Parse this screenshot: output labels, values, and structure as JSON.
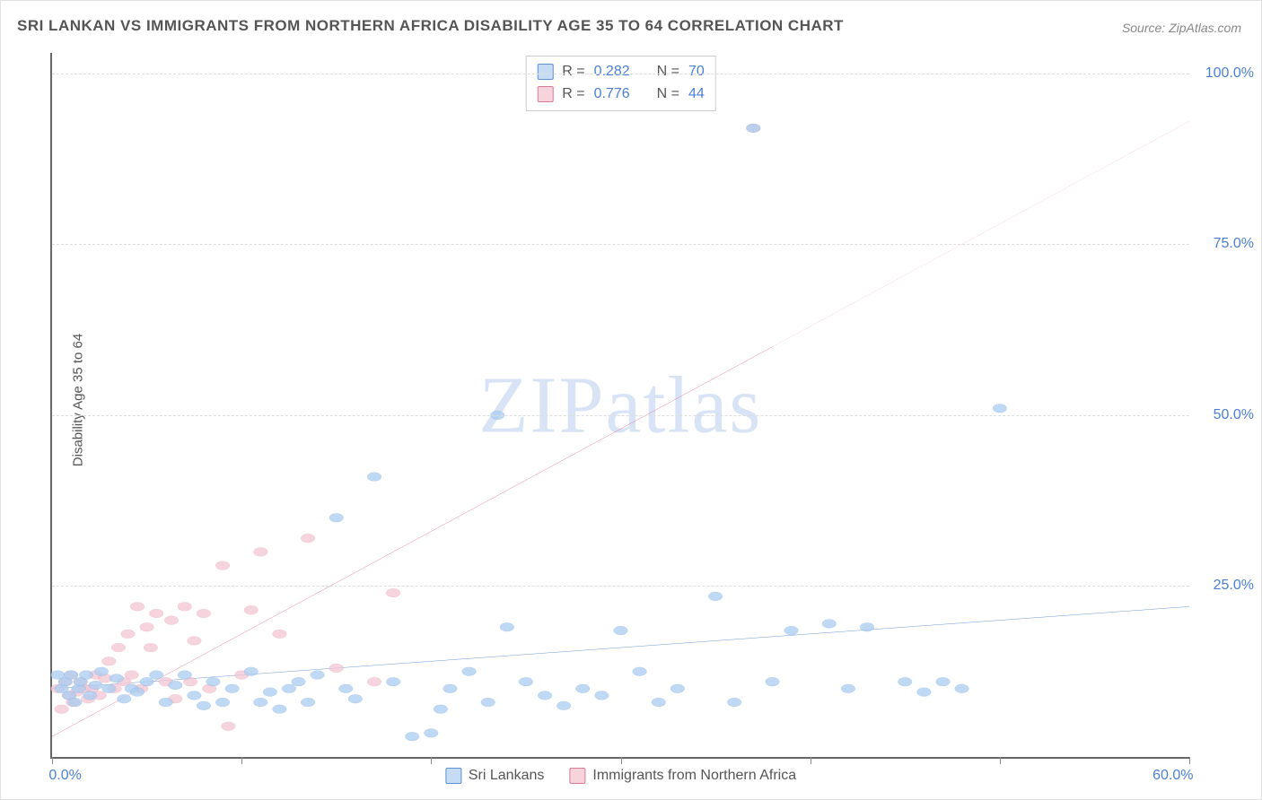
{
  "title": "SRI LANKAN VS IMMIGRANTS FROM NORTHERN AFRICA DISABILITY AGE 35 TO 64 CORRELATION CHART",
  "source": "Source: ZipAtlas.com",
  "ylabel": "Disability Age 35 to 64",
  "watermark_a": "ZIP",
  "watermark_b": "atlas",
  "chart": {
    "type": "scatter",
    "xlim": [
      0,
      60
    ],
    "ylim": [
      0,
      103
    ],
    "yticks": [
      25,
      50,
      75,
      100
    ],
    "ytick_labels": [
      "25.0%",
      "50.0%",
      "75.0%",
      "100.0%"
    ],
    "xticks": [
      0,
      10,
      20,
      30,
      40,
      50,
      60
    ],
    "xtick_labels": [
      "0.0%",
      "",
      "",
      "",
      "",
      "",
      "60.0%"
    ],
    "grid_color": "#dddddd",
    "axis_color": "#666666",
    "label_color": "#4a7fd8",
    "background": "#ffffff",
    "point_radius": 7,
    "point_opacity": 0.75,
    "line_width": 2.8
  },
  "series": {
    "blue": {
      "label": "Sri Lankans",
      "R": "0.282",
      "N": "70",
      "fill": "#a9ccf0",
      "stroke": "#4f86c9",
      "line_color": "#2f6fc4",
      "trend": {
        "x1": 0,
        "y1": 10,
        "x2": 60,
        "y2": 22,
        "dash_from_x": 60
      },
      "points": [
        [
          0.3,
          12
        ],
        [
          0.5,
          10
        ],
        [
          0.7,
          11
        ],
        [
          0.9,
          9
        ],
        [
          1.0,
          12
        ],
        [
          1.2,
          8
        ],
        [
          1.4,
          10
        ],
        [
          1.5,
          11
        ],
        [
          1.8,
          12
        ],
        [
          2.0,
          9
        ],
        [
          2.3,
          10.5
        ],
        [
          2.6,
          12.5
        ],
        [
          3.0,
          10
        ],
        [
          3.4,
          11.5
        ],
        [
          3.8,
          8.5
        ],
        [
          4.2,
          10
        ],
        [
          4.5,
          9.5
        ],
        [
          5.0,
          11
        ],
        [
          5.5,
          12
        ],
        [
          6.0,
          8
        ],
        [
          6.5,
          10.5
        ],
        [
          7.0,
          12
        ],
        [
          7.5,
          9
        ],
        [
          8.0,
          7.5
        ],
        [
          8.5,
          11
        ],
        [
          9.0,
          8
        ],
        [
          9.5,
          10
        ],
        [
          10.5,
          12.5
        ],
        [
          11.0,
          8
        ],
        [
          11.5,
          9.5
        ],
        [
          12.0,
          7
        ],
        [
          12.5,
          10
        ],
        [
          13.0,
          11
        ],
        [
          13.5,
          8
        ],
        [
          14.0,
          12
        ],
        [
          15.0,
          35
        ],
        [
          15.5,
          10
        ],
        [
          16.0,
          8.5
        ],
        [
          17.0,
          41
        ],
        [
          18.0,
          11
        ],
        [
          19.0,
          3
        ],
        [
          20.0,
          3.5
        ],
        [
          20.5,
          7
        ],
        [
          21.0,
          10
        ],
        [
          22.0,
          12.5
        ],
        [
          23.0,
          8
        ],
        [
          23.5,
          50
        ],
        [
          24.0,
          19
        ],
        [
          25.0,
          11
        ],
        [
          26.0,
          9
        ],
        [
          27.0,
          7.5
        ],
        [
          28.0,
          10
        ],
        [
          29.0,
          9
        ],
        [
          30.0,
          18.5
        ],
        [
          31.0,
          12.5
        ],
        [
          32.0,
          8
        ],
        [
          33.0,
          10
        ],
        [
          35.0,
          23.5
        ],
        [
          36.0,
          8
        ],
        [
          38.0,
          11
        ],
        [
          39.0,
          18.5
        ],
        [
          41.0,
          19.5
        ],
        [
          42.0,
          10
        ],
        [
          43.0,
          19
        ],
        [
          45.0,
          11
        ],
        [
          46.0,
          9.5
        ],
        [
          47.0,
          11
        ],
        [
          48.0,
          10
        ],
        [
          50.0,
          51
        ],
        [
          37.0,
          92
        ]
      ]
    },
    "pink": {
      "label": "Immigrants from Northern Africa",
      "R": "0.776",
      "N": "44",
      "fill": "#f3c5d2",
      "stroke": "#d96f8f",
      "line_color": "#e0527c",
      "trend": {
        "x1": 0,
        "y1": 3,
        "x2": 60,
        "y2": 93,
        "dash_from_x": 38
      },
      "points": [
        [
          0.3,
          10
        ],
        [
          0.5,
          7
        ],
        [
          0.7,
          11
        ],
        [
          0.9,
          9
        ],
        [
          1.0,
          12
        ],
        [
          1.1,
          8
        ],
        [
          1.3,
          9.5
        ],
        [
          1.5,
          11
        ],
        [
          1.7,
          10
        ],
        [
          1.9,
          8.5
        ],
        [
          2.1,
          10
        ],
        [
          2.3,
          12
        ],
        [
          2.5,
          9
        ],
        [
          2.8,
          11.5
        ],
        [
          3.0,
          14
        ],
        [
          3.3,
          10
        ],
        [
          3.5,
          16
        ],
        [
          3.8,
          11
        ],
        [
          4.0,
          18
        ],
        [
          4.2,
          12
        ],
        [
          4.5,
          22
        ],
        [
          4.7,
          10
        ],
        [
          5.0,
          19
        ],
        [
          5.2,
          16
        ],
        [
          5.5,
          21
        ],
        [
          6.0,
          11
        ],
        [
          6.3,
          20
        ],
        [
          6.5,
          8.5
        ],
        [
          7.0,
          22
        ],
        [
          7.3,
          11
        ],
        [
          7.5,
          17
        ],
        [
          8.0,
          21
        ],
        [
          8.3,
          10
        ],
        [
          9.0,
          28
        ],
        [
          9.3,
          4.5
        ],
        [
          10.0,
          12
        ],
        [
          10.5,
          21.5
        ],
        [
          11.0,
          30
        ],
        [
          12.0,
          18
        ],
        [
          13.5,
          32
        ],
        [
          15.0,
          13
        ],
        [
          17.0,
          11
        ],
        [
          18.0,
          24
        ],
        [
          37.0,
          92
        ]
      ]
    }
  }
}
